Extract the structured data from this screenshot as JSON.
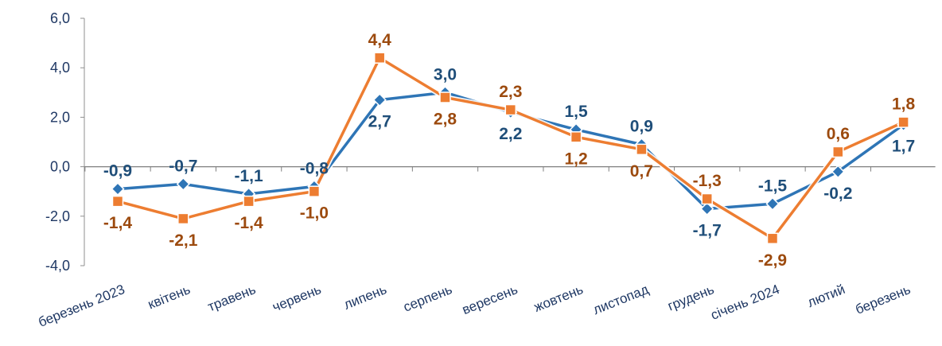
{
  "chart_data": {
    "type": "line",
    "categories": [
      "березень 2023",
      "квітень",
      "травень",
      "червень",
      "липень",
      "серпень",
      "вересень",
      "жовтень",
      "листопад",
      "грудень",
      "січень 2024",
      "лютий",
      "березень"
    ],
    "series": [
      {
        "values": [
          -0.9,
          -0.7,
          -1.1,
          -0.8,
          2.7,
          3.0,
          2.2,
          1.5,
          0.9,
          -1.7,
          -1.5,
          -0.2,
          1.7
        ],
        "labels": [
          "-0,9",
          "-0,7",
          "-1,1",
          "-0,8",
          "2,7",
          "3,0",
          "2,2",
          "1,5",
          "0,9",
          "-1,7",
          "-1,5",
          "-0,2",
          "1,7"
        ],
        "color": "#2E75B6",
        "label_color": "#1F4E79",
        "marker": "diamond"
      },
      {
        "values": [
          -1.4,
          -2.1,
          -1.4,
          -1.0,
          4.4,
          2.8,
          2.3,
          1.2,
          0.7,
          -1.3,
          -2.9,
          0.6,
          1.8
        ],
        "labels": [
          "-1,4",
          "-2,1",
          "-1,4",
          "-1,0",
          "4,4",
          "2,8",
          "2,3",
          "1,2",
          "0,7",
          "-1,3",
          "-2,9",
          "0,6",
          "1,8"
        ],
        "color": "#ED7D31",
        "label_color": "#9C4A0E",
        "marker": "square"
      }
    ],
    "yticks": [
      "-4,0",
      "-2,0",
      "0,0",
      "2,0",
      "4,0",
      "6,0"
    ],
    "ylim": [
      -4,
      6
    ],
    "title": "",
    "xlabel": "",
    "ylabel": "",
    "grid": false,
    "legend": "none"
  }
}
